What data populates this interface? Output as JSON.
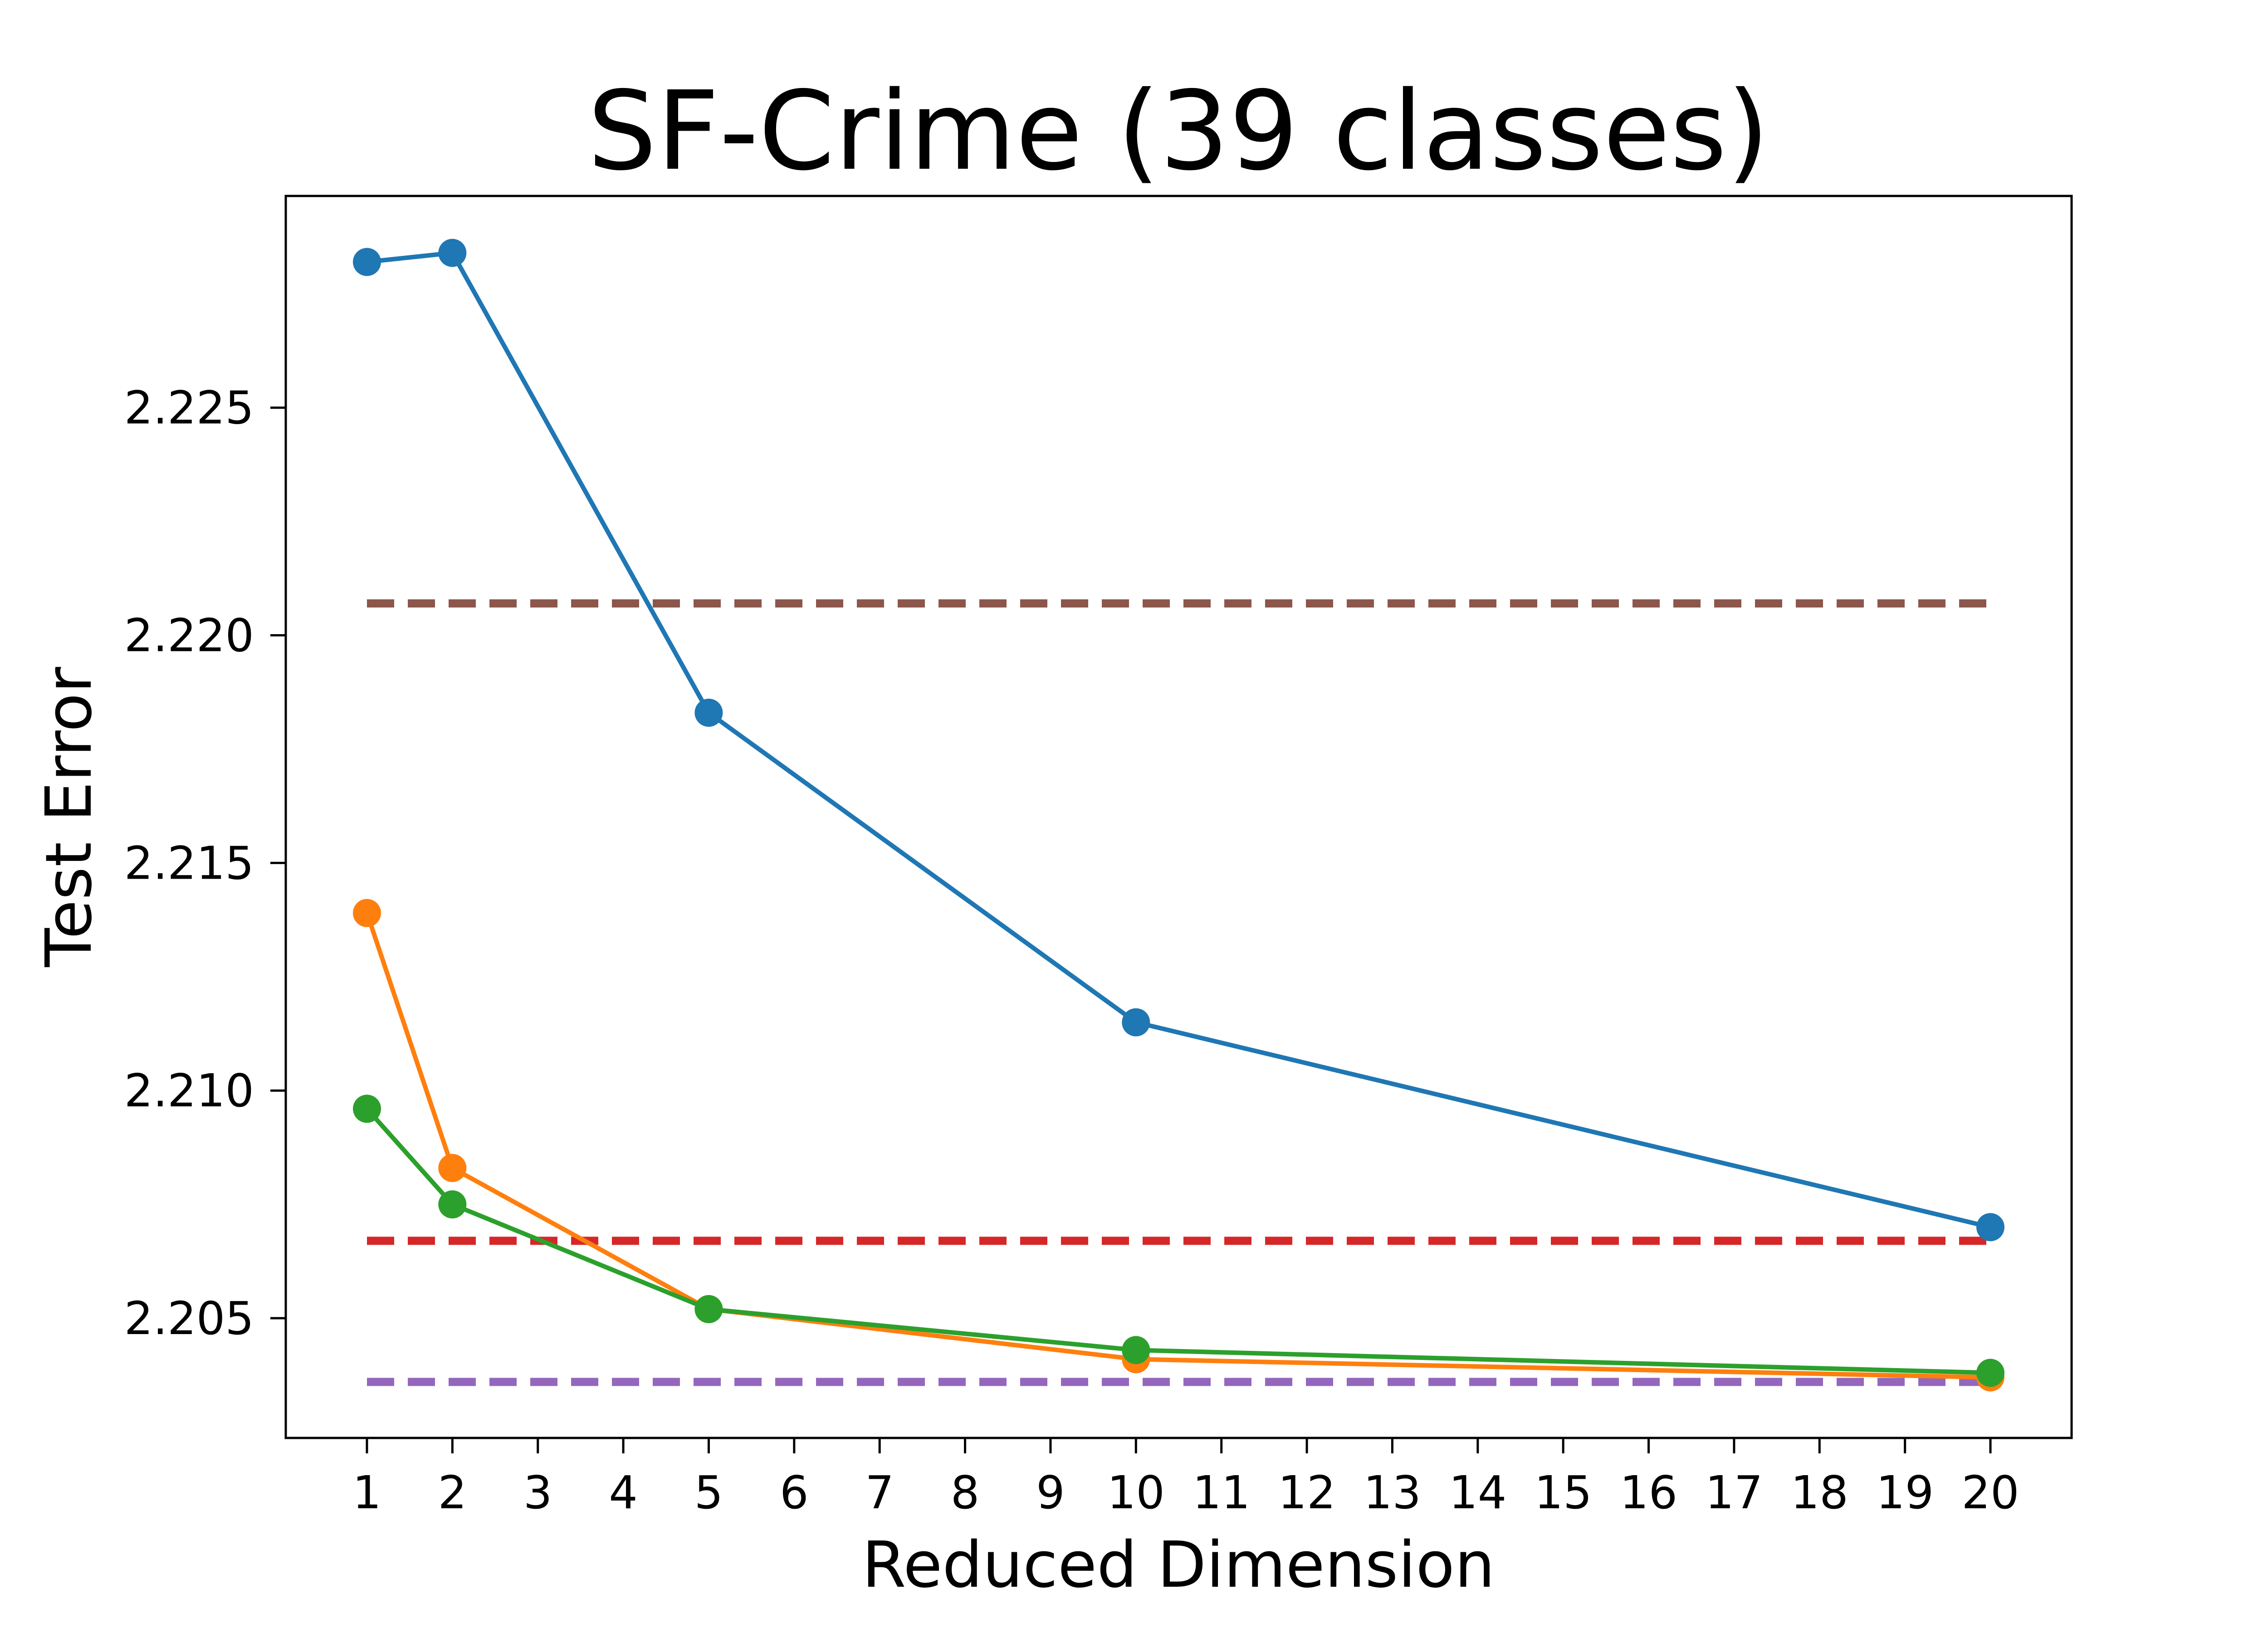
{
  "chart_data": {
    "type": "line",
    "title": "SF-Crime (39 classes)",
    "xlabel": "Reduced Dimension",
    "ylabel": "Test Error",
    "xlim": [
      0.05,
      20.95
    ],
    "ylim": [
      2.20237,
      2.22965
    ],
    "grid": false,
    "x_ticks": [
      1,
      2,
      3,
      4,
      5,
      6,
      7,
      8,
      9,
      10,
      11,
      12,
      13,
      14,
      15,
      16,
      17,
      18,
      19,
      20
    ],
    "y_ticks": [
      2.205,
      2.21,
      2.215,
      2.22,
      2.225
    ],
    "y_tick_labels": [
      "2.205",
      "2.210",
      "2.215",
      "2.220",
      "2.225"
    ],
    "series": [
      {
        "color": "#1f77b4",
        "style": "line-marker",
        "x": [
          1,
          2,
          5,
          10,
          20
        ],
        "y": [
          2.2282,
          2.2284,
          2.2183,
          2.2115,
          2.207
        ]
      },
      {
        "color": "#ff7f0e",
        "style": "line-marker",
        "x": [
          1,
          2,
          5,
          10,
          20
        ],
        "y": [
          2.2139,
          2.2083,
          2.2052,
          2.2041,
          2.2037
        ]
      },
      {
        "color": "#2ca02c",
        "style": "line-marker",
        "x": [
          1,
          2,
          5,
          10,
          20
        ],
        "y": [
          2.2096,
          2.2075,
          2.2052,
          2.2043,
          2.2038
        ]
      },
      {
        "color": "#8c564b",
        "style": "dashed",
        "x": [
          1,
          20
        ],
        "y": [
          2.2207,
          2.2207
        ]
      },
      {
        "color": "#d62728",
        "style": "dashed",
        "x": [
          1,
          20
        ],
        "y": [
          2.2067,
          2.2067
        ]
      },
      {
        "color": "#9467bd",
        "style": "dashed",
        "x": [
          1,
          20
        ],
        "y": [
          2.2036,
          2.2036
        ]
      }
    ]
  }
}
